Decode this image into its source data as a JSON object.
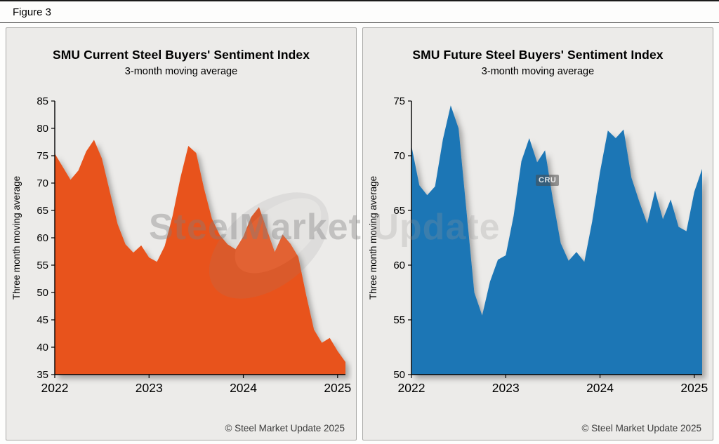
{
  "figure_label": "Figure 3",
  "watermark": {
    "primary": "SteelMarket",
    "secondary": " Update",
    "cru_badge": "CRU"
  },
  "chart_data": [
    {
      "type": "area",
      "title": "SMU Current Steel Buyers' Sentiment Index",
      "subtitle": "3-month moving average",
      "ylabel": "Three month moving average",
      "footer": "© Steel Market Update 2025",
      "color": "#E8521B",
      "ylim": [
        35,
        85
      ],
      "yticks": [
        35,
        40,
        45,
        50,
        55,
        60,
        65,
        70,
        75,
        80,
        85
      ],
      "x_unit": "month",
      "x_range": "Jan 2022 – Feb 2025",
      "x_tick_labels": [
        "2022",
        "2023",
        "2024",
        "2025"
      ],
      "x_tick_indices": [
        0,
        12,
        24,
        36
      ],
      "grid": false,
      "legend": "none",
      "values": [
        75.4,
        73.0,
        70.6,
        72.3,
        75.8,
        77.9,
        74.5,
        68.5,
        62.5,
        58.8,
        57.3,
        58.6,
        56.4,
        55.6,
        58.5,
        64.0,
        71.0,
        76.8,
        75.5,
        69.0,
        63.5,
        60.5,
        58.8,
        57.9,
        60.2,
        63.8,
        65.6,
        61.5,
        57.4,
        60.6,
        58.9,
        56.5,
        49.5,
        43.2,
        40.8,
        41.7,
        39.3,
        37.3
      ]
    },
    {
      "type": "area",
      "title": "SMU Future Steel Buyers' Sentiment Index",
      "subtitle": "3-month moving average",
      "ylabel": "Three month moving average",
      "footer": "© Steel Market Update 2025",
      "color": "#1C76B5",
      "ylim": [
        50,
        75
      ],
      "yticks": [
        50,
        55,
        60,
        65,
        70,
        75
      ],
      "x_unit": "month",
      "x_range": "Jan 2022 – Feb 2025",
      "x_tick_labels": [
        "2022",
        "2023",
        "2024",
        "2025"
      ],
      "x_tick_indices": [
        0,
        12,
        24,
        36
      ],
      "grid": false,
      "legend": "none",
      "values": [
        70.9,
        67.3,
        66.4,
        67.2,
        71.5,
        74.6,
        72.5,
        65.0,
        57.5,
        55.4,
        58.5,
        60.5,
        60.9,
        64.5,
        69.5,
        71.6,
        69.4,
        70.5,
        66.0,
        62.0,
        60.4,
        61.2,
        60.3,
        64.0,
        68.5,
        72.3,
        71.6,
        72.4,
        68.0,
        65.8,
        63.8,
        66.8,
        64.2,
        66.0,
        63.5,
        63.1,
        66.7,
        68.8
      ]
    }
  ]
}
